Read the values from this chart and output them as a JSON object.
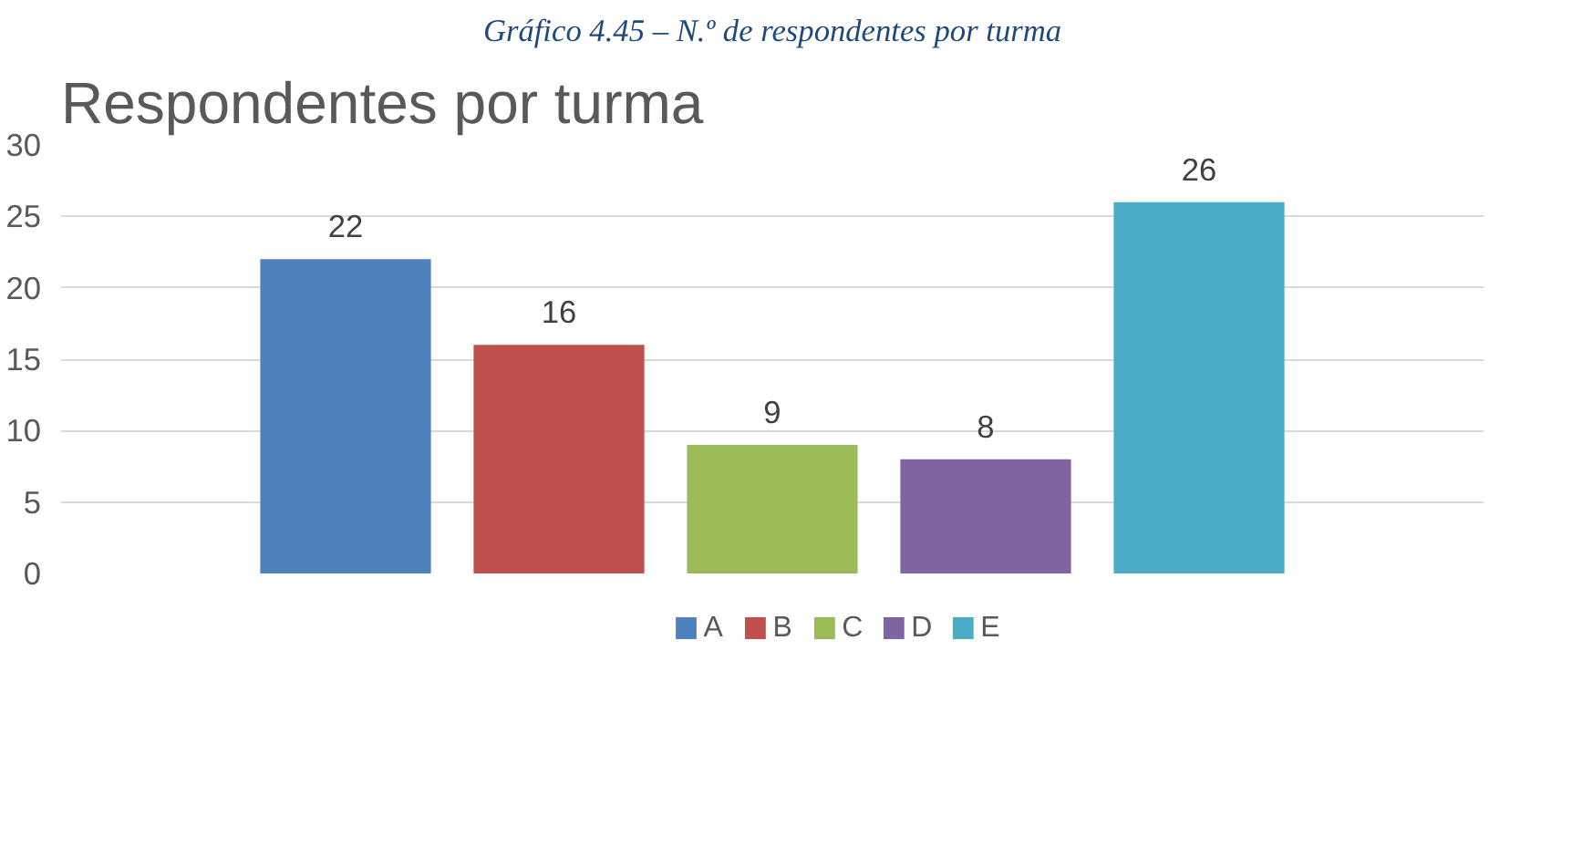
{
  "chart_data": {
    "type": "bar",
    "title": "Respondentes por turma",
    "annotations": [
      "Gráfico 4.45 – N.º de respondentes por turma"
    ],
    "categories": [
      null
    ],
    "series": [
      {
        "name": "A",
        "color": "#4f81bd",
        "values": [
          22
        ]
      },
      {
        "name": "B",
        "color": "#c0504d",
        "values": [
          16
        ]
      },
      {
        "name": "C",
        "color": "#9bbb59",
        "values": [
          9
        ]
      },
      {
        "name": "D",
        "color": "#8064a2",
        "values": [
          8
        ]
      },
      {
        "name": "E",
        "color": "#4bacc6",
        "values": [
          26
        ]
      }
    ],
    "ylim": [
      0,
      30
    ],
    "yticks": [
      0,
      5,
      10,
      15,
      20,
      25,
      30
    ],
    "grid": "y",
    "legend": "bottom",
    "data_labels": true
  }
}
